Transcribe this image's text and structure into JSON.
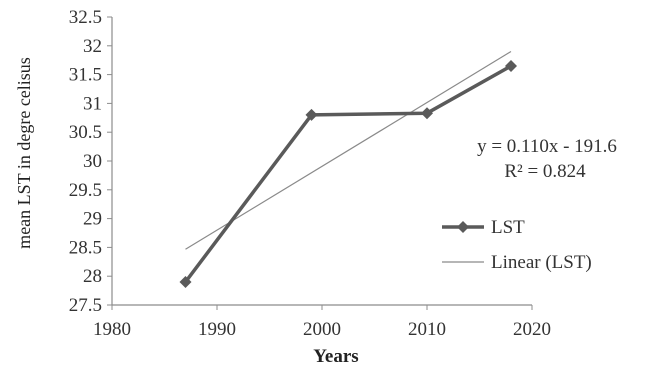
{
  "chart_data": {
    "type": "line",
    "title": "",
    "xlabel": "Years",
    "ylabel": "mean LST in degre celisus",
    "xlim": [
      1980,
      2020
    ],
    "ylim": [
      27.5,
      32.5
    ],
    "x_ticks": [
      1980,
      1990,
      2000,
      2010,
      2020
    ],
    "y_ticks": [
      27.5,
      28,
      28.5,
      29,
      29.5,
      30,
      30.5,
      31,
      31.5,
      32,
      32.5
    ],
    "x_tick_labels": [
      "1980",
      "1990",
      "2000",
      "2010",
      "2020"
    ],
    "y_tick_labels": [
      "27.5",
      "28",
      "28.5",
      "29",
      "29.5",
      "30",
      "30.5",
      "31",
      "31.5",
      "32",
      "32.5"
    ],
    "grid": false,
    "legend_position": "right",
    "series": [
      {
        "name": "LST",
        "x": [
          1987,
          1999,
          2010,
          2018
        ],
        "y": [
          27.9,
          30.8,
          30.83,
          31.65
        ],
        "color": "#5a5a5a",
        "marker": "diamond"
      }
    ],
    "trendline": {
      "name": "Linear (LST)",
      "x": [
        1987,
        2018
      ],
      "color": "#8a8a8a"
    },
    "annotations": {
      "equation": "y = 0.110x - 191.6",
      "r_squared": "R² = 0.824"
    }
  }
}
